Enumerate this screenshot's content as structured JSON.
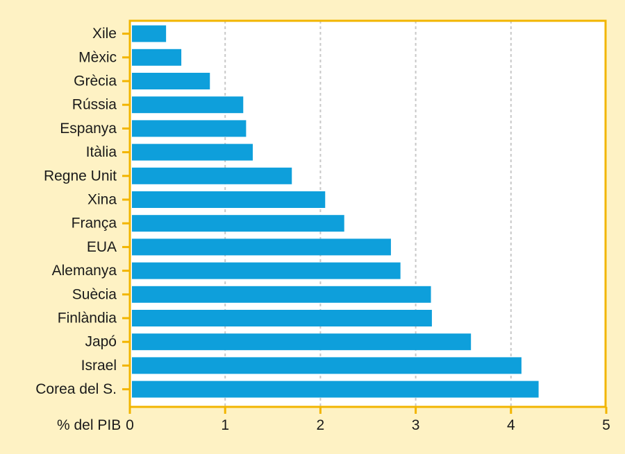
{
  "chart_data": {
    "type": "bar",
    "orientation": "horizontal",
    "categories": [
      "Xile",
      "Mèxic",
      "Grècia",
      "Rússia",
      "Espanya",
      "Itàlia",
      "Regne Unit",
      "Xina",
      "França",
      "EUA",
      "Alemanya",
      "Suècia",
      "Finlàndia",
      "Japó",
      "Israel",
      "Corea del S."
    ],
    "values": [
      0.38,
      0.54,
      0.84,
      1.19,
      1.22,
      1.29,
      1.7,
      2.05,
      2.25,
      2.74,
      2.84,
      3.16,
      3.17,
      3.58,
      4.11,
      4.29
    ],
    "xlabel": "% del PIB",
    "xticks": [
      0,
      1,
      2,
      3,
      4,
      5
    ],
    "xlim": [
      0,
      5
    ],
    "grid": "vertical dashed",
    "colors": {
      "bar": "#0e9fdb",
      "axis": "#f2b500",
      "grid": "#c8c8c8",
      "background": "#fef2c4",
      "plot_background": "#ffffff"
    }
  }
}
